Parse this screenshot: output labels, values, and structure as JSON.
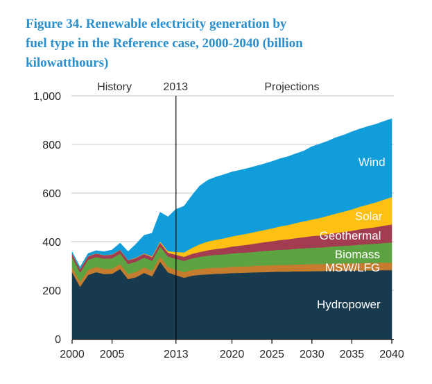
{
  "figure": {
    "title": "Figure 34. Renewable electricity generation by\nfuel type in the Reference case, 2000-2040 (billion\nkilowatthours)"
  },
  "chart_data": {
    "type": "area",
    "stacked": true,
    "title": "Figure 34. Renewable electricity generation by fuel type in the Reference case, 2000-2040 (billion kilowatthours)",
    "units": "billion kilowatthours",
    "xlabel": "",
    "ylabel": "",
    "xlim": [
      2000,
      2040
    ],
    "ylim": [
      0,
      1000
    ],
    "grid": "horizontal",
    "grid_color": "#c7c7c7",
    "divider": {
      "year": 2013,
      "color": "#000000"
    },
    "period_labels": [
      {
        "text": "History",
        "year": 2005.3
      },
      {
        "text": "2013",
        "year": 2012.95
      },
      {
        "text": "Projections",
        "year": 2027.5
      }
    ],
    "x_ticks": {
      "values": [
        2000,
        2005,
        2013,
        2020,
        2025,
        2030,
        2035,
        2040
      ],
      "labels": [
        "2000",
        "2005",
        "2013",
        "2020",
        "2025",
        "2030",
        "2035",
        "2040"
      ]
    },
    "y_ticks": {
      "values": [
        0,
        200,
        400,
        600,
        800,
        1000
      ],
      "labels": [
        "0",
        "200",
        "400",
        "600",
        "800",
        "1,000"
      ]
    },
    "x": [
      2000,
      2001,
      2002,
      2003,
      2004,
      2005,
      2006,
      2007,
      2008,
      2009,
      2010,
      2011,
      2012,
      2013,
      2014,
      2015,
      2016,
      2017,
      2018,
      2019,
      2020,
      2021,
      2022,
      2023,
      2024,
      2025,
      2026,
      2027,
      2028,
      2029,
      2030,
      2031,
      2032,
      2033,
      2034,
      2035,
      2036,
      2037,
      2038,
      2039,
      2040
    ],
    "series": [
      {
        "name": "Hydropower",
        "color": "#173a4f",
        "label_color": "#ffffff",
        "label_year": 2034.6,
        "label_value": 143,
        "values": [
          275,
          215,
          263,
          275,
          267,
          268,
          288,
          246,
          254,
          272,
          258,
          318,
          274,
          262,
          252,
          260,
          264,
          266,
          268,
          269,
          271,
          272,
          273,
          274,
          275,
          276,
          277,
          277,
          278,
          278,
          279,
          279,
          280,
          280,
          281,
          281,
          282,
          282,
          282,
          283,
          283
        ]
      },
      {
        "name": "MSW/LFG",
        "color": "#c57c2f",
        "label_color": "#ffffff",
        "label_year": 2035.1,
        "label_value": 294,
        "values": [
          20,
          20,
          21,
          21,
          21,
          21,
          21,
          21,
          22,
          22,
          22,
          22,
          23,
          23,
          23,
          24,
          24,
          25,
          25,
          25,
          26,
          26,
          26,
          27,
          27,
          27,
          28,
          28,
          28,
          29,
          29,
          29,
          29,
          30,
          30,
          30,
          30,
          31,
          31,
          31,
          31
        ]
      },
      {
        "name": "Biomass",
        "color": "#5ea342",
        "label_color": "#ffffff",
        "label_year": 2035.7,
        "label_value": 349,
        "values": [
          42,
          38,
          42,
          41,
          42,
          43,
          42,
          42,
          42,
          41,
          42,
          41,
          42,
          45,
          46,
          48,
          50,
          52,
          53,
          54,
          55,
          56,
          57,
          58,
          60,
          61,
          62,
          63,
          65,
          66,
          67,
          68,
          70,
          71,
          72,
          74,
          76,
          77,
          79,
          81,
          83
        ]
      },
      {
        "name": "Geothermal",
        "color": "#a23c50",
        "label_color": "#ffffff",
        "label_year": 2034.8,
        "label_value": 426,
        "values": [
          14,
          14,
          14,
          14,
          14,
          15,
          15,
          15,
          15,
          15,
          15,
          16,
          16,
          16,
          17,
          18,
          20,
          22,
          24,
          26,
          28,
          30,
          32,
          34,
          36,
          38,
          40,
          42,
          44,
          46,
          48,
          50,
          52,
          55,
          57,
          60,
          63,
          66,
          68,
          71,
          74
        ]
      },
      {
        "name": "Solar",
        "color": "#fdc013",
        "label_color": "#ffffff",
        "label_year": 2037.1,
        "label_value": 506,
        "values": [
          1,
          1,
          1,
          1,
          1,
          1,
          1,
          1,
          2,
          2,
          3,
          4,
          6,
          12,
          18,
          25,
          32,
          36,
          38,
          40,
          42,
          44,
          46,
          48,
          50,
          53,
          56,
          59,
          62,
          65,
          68,
          72,
          76,
          80,
          84,
          88,
          93,
          97,
          102,
          107,
          112
        ]
      },
      {
        "name": "Wind",
        "color": "#119dd9",
        "label_color": "#ffffff",
        "label_year": 2037.5,
        "label_value": 729,
        "values": [
          6,
          7,
          10,
          11,
          14,
          18,
          27,
          34,
          55,
          74,
          95,
          120,
          141,
          175,
          190,
          215,
          240,
          252,
          258,
          262,
          265,
          266,
          268,
          270,
          272,
          275,
          278,
          281,
          285,
          289,
          300,
          304,
          307,
          312,
          315,
          319,
          320,
          321,
          321,
          322,
          323
        ]
      }
    ]
  }
}
